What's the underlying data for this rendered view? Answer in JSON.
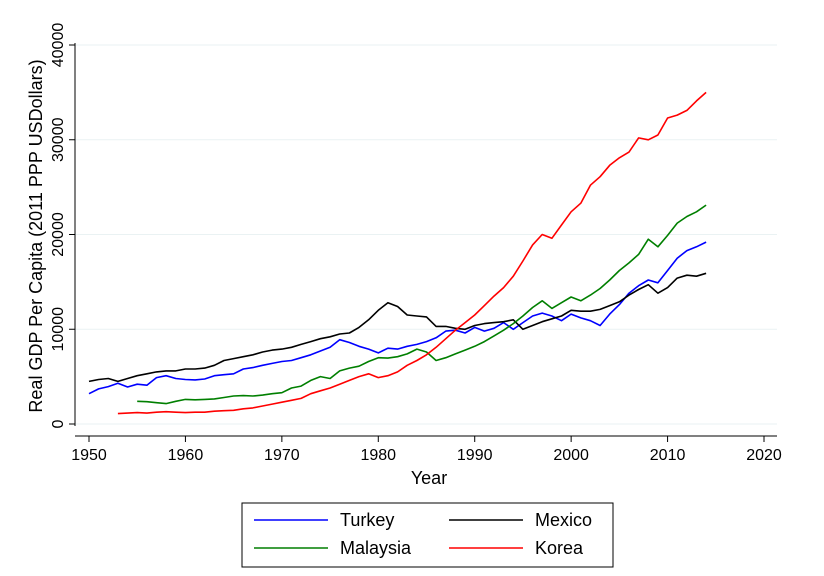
{
  "chart_data": {
    "type": "line",
    "xlabel": "Year",
    "ylabel": "Real GDP Per Capita (2011 PPP USDollars)",
    "xlim": [
      1950,
      2020
    ],
    "ylim": [
      0,
      40000
    ],
    "xticks": [
      1950,
      1960,
      1970,
      1980,
      1990,
      2000,
      2010,
      2020
    ],
    "yticks": [
      0,
      10000,
      20000,
      30000,
      40000
    ],
    "xtick_labels": [
      "1950",
      "1960",
      "1970",
      "1980",
      "1990",
      "2000",
      "2010",
      "2020"
    ],
    "ytick_labels": [
      "0",
      "10000",
      "20000",
      "30000",
      "40000"
    ],
    "grid": "horizontal",
    "legend_position": "bottom",
    "series": [
      {
        "name": "Turkey",
        "color": "#0000ff",
        "x": [
          1950,
          1951,
          1952,
          1953,
          1954,
          1955,
          1956,
          1957,
          1958,
          1959,
          1960,
          1961,
          1962,
          1963,
          1964,
          1965,
          1966,
          1967,
          1968,
          1969,
          1970,
          1971,
          1972,
          1973,
          1974,
          1975,
          1976,
          1977,
          1978,
          1979,
          1980,
          1981,
          1982,
          1983,
          1984,
          1985,
          1986,
          1987,
          1988,
          1989,
          1990,
          1991,
          1992,
          1993,
          1994,
          1995,
          1996,
          1997,
          1998,
          1999,
          2000,
          2001,
          2002,
          2003,
          2004,
          2005,
          2006,
          2007,
          2008,
          2009,
          2010,
          2011,
          2012,
          2013,
          2014
        ],
        "y": [
          3200,
          3700,
          3950,
          4300,
          3900,
          4200,
          4100,
          4900,
          5100,
          4800,
          4700,
          4650,
          4750,
          5100,
          5200,
          5300,
          5800,
          5950,
          6200,
          6400,
          6600,
          6700,
          7000,
          7300,
          7700,
          8100,
          8900,
          8600,
          8200,
          7900,
          7500,
          8000,
          7900,
          8200,
          8400,
          8700,
          9100,
          9800,
          9900,
          9600,
          10200,
          9800,
          10100,
          10700,
          10000,
          10700,
          11400,
          11700,
          11400,
          10900,
          11600,
          11200,
          10900,
          10400,
          11600,
          12600,
          13800,
          14600,
          15200,
          14900,
          16200,
          17500,
          18300,
          18700,
          19200
        ]
      },
      {
        "name": "Mexico",
        "color": "#000000",
        "x": [
          1950,
          1951,
          1952,
          1953,
          1954,
          1955,
          1956,
          1957,
          1958,
          1959,
          1960,
          1961,
          1962,
          1963,
          1964,
          1965,
          1966,
          1967,
          1968,
          1969,
          1970,
          1971,
          1972,
          1973,
          1974,
          1975,
          1976,
          1977,
          1978,
          1979,
          1980,
          1981,
          1982,
          1983,
          1984,
          1985,
          1986,
          1987,
          1988,
          1989,
          1990,
          1991,
          1992,
          1993,
          1994,
          1995,
          1996,
          1997,
          1998,
          1999,
          2000,
          2001,
          2002,
          2003,
          2004,
          2005,
          2006,
          2007,
          2008,
          2009,
          2010,
          2011,
          2012,
          2013,
          2014
        ],
        "y": [
          4500,
          4700,
          4800,
          4500,
          4800,
          5100,
          5300,
          5500,
          5600,
          5600,
          5800,
          5800,
          5900,
          6200,
          6700,
          6900,
          7100,
          7300,
          7600,
          7800,
          7900,
          8100,
          8400,
          8700,
          9000,
          9200,
          9500,
          9600,
          10200,
          11000,
          12000,
          12800,
          12400,
          11500,
          11400,
          11300,
          10300,
          10300,
          10100,
          10000,
          10400,
          10600,
          10700,
          10800,
          11000,
          10000,
          10400,
          10800,
          11100,
          11400,
          12000,
          11900,
          11900,
          12100,
          12500,
          12900,
          13600,
          14200,
          14700,
          13800,
          14400,
          15400,
          15700,
          15600,
          15900
        ]
      },
      {
        "name": "Malaysia",
        "color": "#007f00",
        "x": [
          1955,
          1956,
          1957,
          1958,
          1959,
          1960,
          1961,
          1962,
          1963,
          1964,
          1965,
          1966,
          1967,
          1968,
          1969,
          1970,
          1971,
          1972,
          1973,
          1974,
          1975,
          1976,
          1977,
          1978,
          1979,
          1980,
          1981,
          1982,
          1983,
          1984,
          1985,
          1986,
          1987,
          1988,
          1989,
          1990,
          1991,
          1992,
          1993,
          1994,
          1995,
          1996,
          1997,
          1998,
          1999,
          2000,
          2001,
          2002,
          2003,
          2004,
          2005,
          2006,
          2007,
          2008,
          2009,
          2010,
          2011,
          2012,
          2013,
          2014
        ],
        "y": [
          2400,
          2350,
          2250,
          2150,
          2400,
          2600,
          2550,
          2600,
          2650,
          2800,
          2950,
          3000,
          2950,
          3050,
          3200,
          3300,
          3800,
          4000,
          4600,
          5000,
          4800,
          5600,
          5900,
          6100,
          6600,
          7000,
          6950,
          7100,
          7400,
          7900,
          7600,
          6700,
          7000,
          7400,
          7800,
          8200,
          8700,
          9300,
          9900,
          10600,
          11400,
          12300,
          13000,
          12200,
          12800,
          13400,
          13000,
          13600,
          14300,
          15200,
          16200,
          17000,
          17900,
          19500,
          18700,
          19900,
          21200,
          21900,
          22400,
          23100
        ]
      },
      {
        "name": "Korea",
        "color": "#ff0000",
        "x": [
          1953,
          1954,
          1955,
          1956,
          1957,
          1958,
          1959,
          1960,
          1961,
          1962,
          1963,
          1964,
          1965,
          1966,
          1967,
          1968,
          1969,
          1970,
          1971,
          1972,
          1973,
          1974,
          1975,
          1976,
          1977,
          1978,
          1979,
          1980,
          1981,
          1982,
          1983,
          1984,
          1985,
          1986,
          1987,
          1988,
          1989,
          1990,
          1991,
          1992,
          1993,
          1994,
          1995,
          1996,
          1997,
          1998,
          1999,
          2000,
          2001,
          2002,
          2003,
          2004,
          2005,
          2006,
          2007,
          2008,
          2009,
          2010,
          2011,
          2012,
          2013,
          2014
        ],
        "y": [
          1100,
          1150,
          1200,
          1150,
          1250,
          1300,
          1250,
          1200,
          1250,
          1250,
          1350,
          1400,
          1450,
          1600,
          1700,
          1900,
          2100,
          2300,
          2500,
          2700,
          3200,
          3500,
          3800,
          4200,
          4600,
          5000,
          5300,
          4900,
          5100,
          5500,
          6200,
          6700,
          7300,
          8100,
          9000,
          9900,
          10700,
          11500,
          12500,
          13500,
          14400,
          15600,
          17200,
          18900,
          20000,
          19600,
          21000,
          22400,
          23300,
          25200,
          26100,
          27300,
          28100,
          28700,
          30200,
          30000,
          30500,
          32300,
          32600,
          33100,
          34100,
          35000
        ]
      }
    ]
  }
}
